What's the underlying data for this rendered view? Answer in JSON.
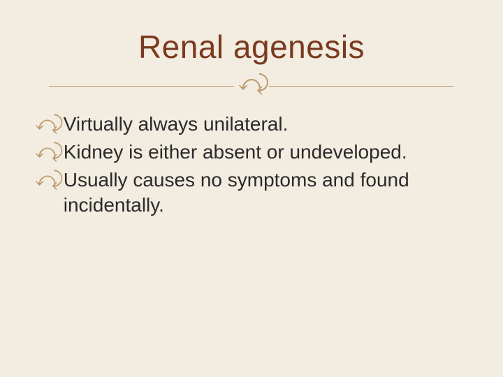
{
  "title": "Renal agenesis",
  "bullets": [
    "Virtually always unilateral.",
    "Kidney is either absent or undeveloped.",
    "Usually causes no symptoms and found incidentally."
  ],
  "colors": {
    "background": "#f2ece1",
    "title": "#7a3a1f",
    "accent": "#bc9a6a",
    "body_text": "#2a2a2a"
  },
  "typography": {
    "title_fontsize": 46,
    "body_fontsize": 28,
    "font_family": "Arial"
  },
  "flourish_glyph": "་་",
  "bullet_glyph": "་་"
}
